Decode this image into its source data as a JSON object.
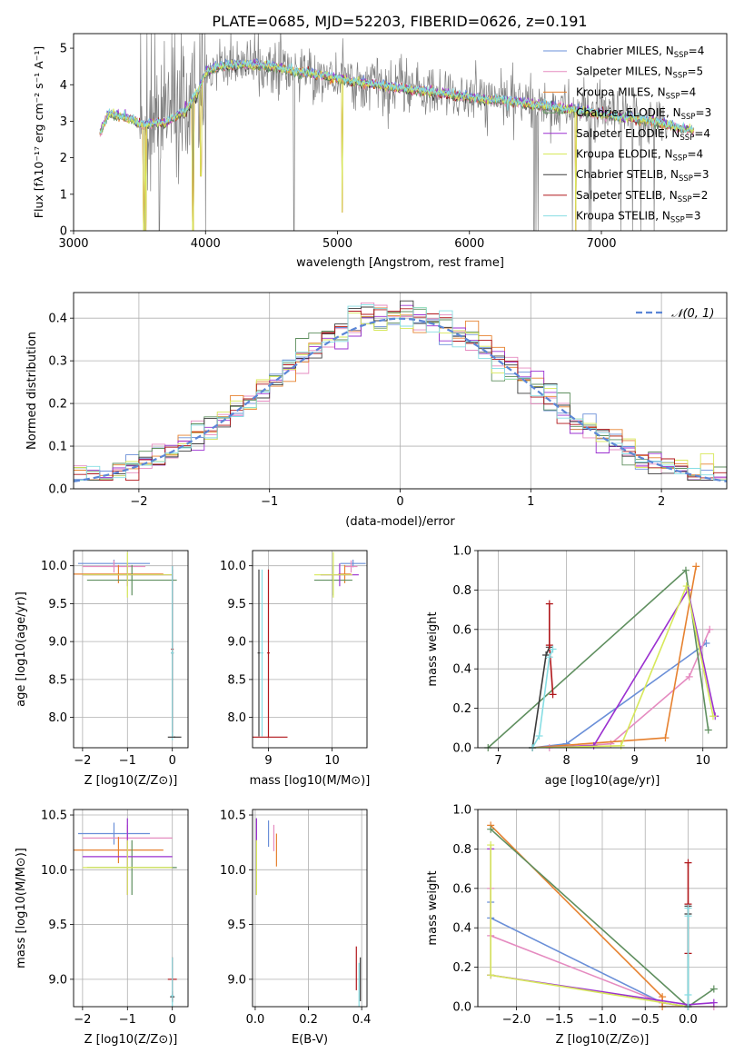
{
  "figure": {
    "title": "PLATE=0685, MJD=52203, FIBERID=0626, z=0.191"
  },
  "colors": {
    "Chabrier MILES": "#6a8fd8",
    "Salpeter MILES": "#e58bc0",
    "Kroupa MILES": "#e6812f",
    "Chabrier ELODIE": "#5f8f5f",
    "Salpeter ELODIE": "#9b30d0",
    "Kroupa ELODIE": "#d7e85a",
    "Chabrier STELIB": "#3c3c3c",
    "Salpeter STELIB": "#b0161a",
    "Kroupa STELIB": "#86dde3",
    "data": "#808080",
    "normal": "#5b86d6",
    "grid": "#b0b0b0"
  },
  "chart_data": [
    {
      "id": "spectrum",
      "type": "line",
      "title": "PLATE=0685, MJD=52203, FIBERID=0626, z=0.191",
      "xlabel": "wavelength [Angstrom, rest frame]",
      "ylabel": "Flux [fλ10⁻¹⁷ erg cm⁻² s⁻¹ A⁻¹]",
      "xlim": [
        3000,
        7950
      ],
      "ylim": [
        0,
        5.4
      ],
      "xticks": [
        3000,
        4000,
        5000,
        6000,
        7000
      ],
      "yticks": [
        0,
        1,
        2,
        3,
        4,
        5
      ],
      "grid": false,
      "legend_position": "top-right",
      "legend": [
        {
          "name": "Chabrier MILES",
          "nssp": "4"
        },
        {
          "name": "Salpeter MILES",
          "nssp": "5"
        },
        {
          "name": "Kroupa MILES",
          "nssp": "4"
        },
        {
          "name": "Chabrier ELODIE",
          "nssp": "3"
        },
        {
          "name": "Salpeter ELODIE",
          "nssp": "4"
        },
        {
          "name": "Kroupa ELODIE",
          "nssp": "4"
        },
        {
          "name": "Chabrier STELIB",
          "nssp": "3"
        },
        {
          "name": "Salpeter STELIB",
          "nssp": "2"
        },
        {
          "name": "Kroupa STELIB",
          "nssp": "3"
        }
      ],
      "continuum": [
        [
          3200,
          2.65
        ],
        [
          3260,
          3.2
        ],
        [
          3350,
          3.15
        ],
        [
          3450,
          3.05
        ],
        [
          3520,
          2.9
        ],
        [
          3600,
          2.95
        ],
        [
          3700,
          2.95
        ],
        [
          3760,
          3.1
        ],
        [
          3850,
          3.3
        ],
        [
          3950,
          3.85
        ],
        [
          4000,
          4.35
        ],
        [
          4100,
          4.5
        ],
        [
          4300,
          4.55
        ],
        [
          4500,
          4.5
        ],
        [
          4700,
          4.35
        ],
        [
          4900,
          4.25
        ],
        [
          5100,
          4.1
        ],
        [
          5300,
          4.0
        ],
        [
          5500,
          3.9
        ],
        [
          5700,
          3.8
        ],
        [
          5900,
          3.7
        ],
        [
          6100,
          3.6
        ],
        [
          6300,
          3.55
        ],
        [
          6500,
          3.45
        ],
        [
          6700,
          3.35
        ],
        [
          6900,
          3.25
        ],
        [
          7100,
          3.15
        ],
        [
          7300,
          3.05
        ],
        [
          7450,
          2.95
        ],
        [
          7600,
          2.8
        ],
        [
          7700,
          2.75
        ]
      ],
      "model_dips": [
        {
          "x": 3533,
          "y": 0.0
        },
        {
          "x": 3548,
          "y": 0.0
        },
        {
          "x": 3905,
          "y": 0.0
        },
        {
          "x": 3965,
          "y": 1.5
        },
        {
          "x": 5035,
          "y": 0.5
        },
        {
          "x": 6805,
          "y": 0.0
        }
      ],
      "data_noise_region": [
        3500,
        7500
      ],
      "data_zero_spikes": [
        3540,
        3650,
        3905,
        4000,
        4670,
        6490,
        6520,
        6780,
        7300,
        7400
      ]
    },
    {
      "id": "residuals",
      "type": "histogram",
      "xlabel": "(data-model)/error",
      "ylabel": "Normed distribution",
      "xlim": [
        -2.5,
        2.5
      ],
      "ylim": [
        0,
        0.46
      ],
      "xticks": [
        -2,
        -1,
        0,
        1,
        2
      ],
      "yticks": [
        0.0,
        0.1,
        0.2,
        0.3,
        0.4
      ],
      "grid": true,
      "bin_width": 0.1,
      "legend_position": "top-right",
      "normal_label": "𝒩(0, 1)"
    },
    {
      "id": "age-vs-Z",
      "type": "errorbar",
      "xlabel": "Z [log10(Z/Z⊙)]",
      "ylabel": "age [log10(age/yr)]",
      "xlim": [
        -2.2,
        0.35
      ],
      "ylim": [
        7.6,
        10.2
      ],
      "xticks": [
        -2,
        -1,
        0
      ],
      "yticks": [
        8.0,
        8.5,
        9.0,
        9.5,
        10.0
      ],
      "grid": true,
      "points": [
        {
          "model": "Chabrier MILES",
          "x": -1.3,
          "xerr": 0.8,
          "y": 10.03,
          "yerr": 0.05
        },
        {
          "model": "Salpeter MILES",
          "x": -1.3,
          "xerr": 0.7,
          "y": 9.99,
          "yerr": 0.08
        },
        {
          "model": "Kroupa MILES",
          "x": -1.2,
          "xerr": 1.0,
          "y": 9.89,
          "yerr": 0.12
        },
        {
          "model": "Chabrier ELODIE",
          "x": -0.9,
          "xerr": 1.0,
          "y": 9.81,
          "yerr": 0.2
        },
        {
          "model": "Salpeter ELODIE",
          "x": -1.0,
          "xerr": 1.0,
          "y": 9.88,
          "yerr": 0.15
        },
        {
          "model": "Kroupa ELODIE",
          "x": -1.0,
          "xerr": 1.0,
          "y": 9.88,
          "yerr": 0.3
        },
        {
          "model": "Chabrier STELIB",
          "x": 0.0,
          "xerr": 0.03,
          "y": 8.85,
          "yerr": 1.1
        },
        {
          "model": "Salpeter STELIB",
          "x": 0.0,
          "xerr": 0.03,
          "y": 8.9,
          "yerr": 1.1
        },
        {
          "model": "Kroupa STELIB",
          "x": 0.0,
          "xerr": 0.03,
          "y": 8.85,
          "yerr": 1.15
        },
        {
          "model": "Chabrier STELIB",
          "x": 0.05,
          "xerr": 0.15,
          "y": 7.74,
          "yerr": 0.01
        }
      ]
    },
    {
      "id": "age-vs-mass",
      "type": "errorbar",
      "xlabel": "mass [log10(M/M⊙)]",
      "ylabel": "",
      "xlim": [
        8.75,
        10.55
      ],
      "ylim": [
        7.6,
        10.2
      ],
      "xticks": [
        9,
        10
      ],
      "yticks": [
        8.0,
        8.5,
        9.0,
        9.5,
        10.0
      ],
      "grid": true,
      "points": [
        {
          "model": "Chabrier MILES",
          "x": 10.33,
          "xerr": 0.2,
          "y": 10.03,
          "yerr": 0.05
        },
        {
          "model": "Salpeter MILES",
          "x": 10.3,
          "xerr": 0.1,
          "y": 9.99,
          "yerr": 0.08
        },
        {
          "model": "Kroupa MILES",
          "x": 10.2,
          "xerr": 0.1,
          "y": 9.89,
          "yerr": 0.12
        },
        {
          "model": "Chabrier ELODIE",
          "x": 10.02,
          "xerr": 0.3,
          "y": 9.81,
          "yerr": 0.2
        },
        {
          "model": "Salpeter ELODIE",
          "x": 10.12,
          "xerr": 0.3,
          "y": 9.88,
          "yerr": 0.15
        },
        {
          "model": "Kroupa ELODIE",
          "x": 10.02,
          "xerr": 0.3,
          "y": 9.88,
          "yerr": 0.3
        },
        {
          "model": "Chabrier STELIB",
          "x": 8.85,
          "xerr": 0.02,
          "y": 8.85,
          "yerr": 1.1
        },
        {
          "model": "Salpeter STELIB",
          "x": 9.0,
          "xerr": 0.02,
          "y": 8.85,
          "yerr": 1.1
        },
        {
          "model": "Kroupa STELIB",
          "x": 8.9,
          "xerr": 0.02,
          "y": 8.85,
          "yerr": 1.1
        },
        {
          "model": "Salpeter STELIB",
          "x": 9.0,
          "xerr": 0.3,
          "y": 7.74,
          "yerr": 0.01
        }
      ]
    },
    {
      "id": "weight-vs-age",
      "type": "line",
      "xlabel": "age [log10(age/yr)]",
      "ylabel": "mass weight",
      "xlim": [
        6.7,
        10.35
      ],
      "ylim": [
        0,
        1.0
      ],
      "xticks": [
        7,
        8,
        9,
        10
      ],
      "yticks": [
        0.0,
        0.2,
        0.4,
        0.6,
        0.8,
        1.0
      ],
      "grid": true,
      "series": [
        {
          "model": "Chabrier MILES",
          "x": [
            7.5,
            8.0,
            10.05
          ],
          "y": [
            0.0,
            0.02,
            0.53
          ]
        },
        {
          "model": "Salpeter MILES",
          "x": [
            7.75,
            8.65,
            9.8,
            10.1
          ],
          "y": [
            0.0,
            0.02,
            0.36,
            0.6
          ]
        },
        {
          "model": "Kroupa MILES",
          "x": [
            7.5,
            9.45,
            9.9
          ],
          "y": [
            0.0,
            0.05,
            0.92
          ]
        },
        {
          "model": "Chabrier ELODIE",
          "x": [
            6.85,
            9.75,
            10.08
          ],
          "y": [
            0.0,
            0.9,
            0.09
          ]
        },
        {
          "model": "Salpeter ELODIE",
          "x": [
            7.5,
            8.4,
            9.78,
            10.18
          ],
          "y": [
            0.0,
            0.01,
            0.8,
            0.16
          ]
        },
        {
          "model": "Kroupa ELODIE",
          "x": [
            7.5,
            8.8,
            9.76,
            10.15
          ],
          "y": [
            0.0,
            0.01,
            0.82,
            0.16
          ]
        },
        {
          "model": "Chabrier STELIB",
          "x": [
            7.5,
            7.7,
            7.75
          ],
          "y": [
            0.0,
            0.47,
            0.51
          ]
        },
        {
          "model": "Salpeter STELIB",
          "x": [
            7.75,
            7.75,
            7.8
          ],
          "y": [
            0.73,
            0.52,
            0.27
          ]
        },
        {
          "model": "Kroupa STELIB",
          "x": [
            7.5,
            7.6,
            7.75,
            7.8
          ],
          "y": [
            0.0,
            0.06,
            0.46,
            0.5
          ]
        }
      ]
    },
    {
      "id": "mass-vs-Z",
      "type": "errorbar",
      "xlabel": "Z [log10(Z/Z⊙)]",
      "ylabel": "mass [log10(M/M⊙)]",
      "xlim": [
        -2.2,
        0.35
      ],
      "ylim": [
        8.75,
        10.55
      ],
      "xticks": [
        -2,
        -1,
        0
      ],
      "yticks": [
        9.0,
        9.5,
        10.0,
        10.5
      ],
      "grid": true,
      "points": [
        {
          "model": "Chabrier MILES",
          "x": -1.3,
          "xerr": 0.8,
          "y": 10.33,
          "yerr": 0.1
        },
        {
          "model": "Salpeter MILES",
          "x": -1.0,
          "xerr": 1.0,
          "y": 10.29,
          "yerr": 0.12
        },
        {
          "model": "Kroupa MILES",
          "x": -1.2,
          "xerr": 1.0,
          "y": 10.18,
          "yerr": 0.12
        },
        {
          "model": "Chabrier ELODIE",
          "x": -0.9,
          "xerr": 1.0,
          "y": 10.02,
          "yerr": 0.25
        },
        {
          "model": "Salpeter ELODIE",
          "x": -1.0,
          "xerr": 1.0,
          "y": 10.12,
          "yerr": 0.35
        },
        {
          "model": "Kroupa ELODIE",
          "x": -1.0,
          "xerr": 1.0,
          "y": 10.02,
          "yerr": 0.25
        },
        {
          "model": "Chabrier STELIB",
          "x": 0.0,
          "xerr": 0.05,
          "y": 8.84,
          "yerr": 0.05
        },
        {
          "model": "Salpeter STELIB",
          "x": 0.0,
          "xerr": 0.1,
          "y": 9.0,
          "yerr": 0.2
        },
        {
          "model": "Kroupa STELIB",
          "x": 0.0,
          "xerr": 0.03,
          "y": 8.85,
          "yerr": 0.35
        }
      ]
    },
    {
      "id": "mass-vs-EBV",
      "type": "errorbar",
      "xlabel": "E(B-V)",
      "ylabel": "",
      "xlim": [
        -0.01,
        0.42
      ],
      "ylim": [
        8.75,
        10.55
      ],
      "xticks": [
        0.0,
        0.2,
        0.4
      ],
      "yticks": [
        9.0,
        9.5,
        10.0,
        10.5
      ],
      "grid": true,
      "points": [
        {
          "model": "Chabrier MILES",
          "x": 0.05,
          "y": 10.33,
          "yerr": 0.12
        },
        {
          "model": "Salpeter MILES",
          "x": 0.07,
          "y": 10.29,
          "yerr": 0.12
        },
        {
          "model": "Kroupa MILES",
          "x": 0.08,
          "y": 10.18,
          "yerr": 0.15
        },
        {
          "model": "Chabrier ELODIE",
          "x": 0.005,
          "y": 10.12,
          "yerr": 0.35
        },
        {
          "model": "Salpeter ELODIE",
          "x": 0.005,
          "y": 10.12,
          "yerr": 0.35
        },
        {
          "model": "Kroupa ELODIE",
          "x": 0.005,
          "y": 10.02,
          "yerr": 0.25
        },
        {
          "model": "Chabrier STELIB",
          "x": 0.395,
          "y": 9.0,
          "yerr": 0.2
        },
        {
          "model": "Salpeter STELIB",
          "x": 0.38,
          "y": 9.1,
          "yerr": 0.2
        },
        {
          "model": "Kroupa STELIB",
          "x": 0.39,
          "y": 8.95,
          "yerr": 0.2
        }
      ]
    },
    {
      "id": "weight-vs-Z",
      "type": "line",
      "xlabel": "Z [log10(Z/Z⊙)]",
      "ylabel": "mass weight",
      "xlim": [
        -2.45,
        0.45
      ],
      "ylim": [
        0,
        1.0
      ],
      "xticks": [
        -2.0,
        -1.5,
        -1.0,
        -0.5,
        0.0
      ],
      "yticks": [
        0.0,
        0.2,
        0.4,
        0.6,
        0.8,
        1.0
      ],
      "grid": true,
      "series": [
        {
          "model": "Chabrier MILES",
          "x": [
            -2.3,
            -2.3,
            -0.3,
            0.0,
            0.0
          ],
          "y": [
            0.53,
            0.45,
            0.02,
            0.0,
            0.0
          ]
        },
        {
          "model": "Salpeter MILES",
          "x": [
            -2.3,
            -2.3,
            -0.3,
            0.0,
            0.3
          ],
          "y": [
            0.6,
            0.36,
            0.02,
            0.0,
            0.0
          ]
        },
        {
          "model": "Kroupa MILES",
          "x": [
            -2.3,
            -0.3,
            -0.3,
            0.0
          ],
          "y": [
            0.92,
            0.05,
            0.0,
            0.0
          ]
        },
        {
          "model": "Chabrier ELODIE",
          "x": [
            -2.3,
            0.0,
            0.3
          ],
          "y": [
            0.9,
            0.0,
            0.09
          ]
        },
        {
          "model": "Salpeter ELODIE",
          "x": [
            -2.3,
            -2.3,
            0.0,
            0.3
          ],
          "y": [
            0.8,
            0.16,
            0.01,
            0.02
          ]
        },
        {
          "model": "Kroupa ELODIE",
          "x": [
            -2.3,
            -2.3,
            0.0
          ],
          "y": [
            0.82,
            0.16,
            0.0
          ]
        },
        {
          "model": "Chabrier STELIB",
          "x": [
            0.0,
            0.0,
            0.0
          ],
          "y": [
            0.0,
            0.47,
            0.51
          ]
        },
        {
          "model": "Salpeter STELIB",
          "x": [
            0.0,
            0.0,
            0.0
          ],
          "y": [
            0.73,
            0.52,
            0.27
          ]
        },
        {
          "model": "Kroupa STELIB",
          "x": [
            0.0,
            0.0,
            0.0,
            0.0
          ],
          "y": [
            0.0,
            0.06,
            0.46,
            0.5
          ]
        }
      ]
    }
  ]
}
